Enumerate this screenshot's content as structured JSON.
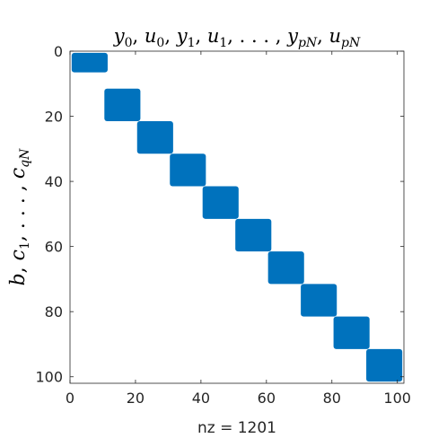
{
  "chart_data": {
    "type": "spy",
    "title": "y_0, u_0, y_1, u_1, ..., y_pN, u_pN",
    "ylabel": "b, c_1, ..., c_qN",
    "xlabel": "nz = 1201",
    "xlim": [
      0,
      102
    ],
    "ylim": [
      102,
      0
    ],
    "xticks": [
      "0",
      "20",
      "40",
      "60",
      "80",
      "100"
    ],
    "yticks": [
      "0",
      "20",
      "40",
      "60",
      "80",
      "100"
    ],
    "xtick_values": [
      0,
      20,
      40,
      60,
      80,
      100
    ],
    "ytick_values": [
      0,
      20,
      40,
      60,
      80,
      100
    ],
    "marker_color": "#0072BD",
    "blocks": [
      {
        "row_start": 1,
        "row_end": 6,
        "col_start": 1,
        "col_end": 11
      },
      {
        "row_start": 12,
        "row_end": 21,
        "col_start": 11,
        "col_end": 21
      },
      {
        "row_start": 22,
        "row_end": 31,
        "col_start": 21,
        "col_end": 31
      },
      {
        "row_start": 32,
        "row_end": 41,
        "col_start": 31,
        "col_end": 41
      },
      {
        "row_start": 42,
        "row_end": 51,
        "col_start": 41,
        "col_end": 51
      },
      {
        "row_start": 52,
        "row_end": 61,
        "col_start": 51,
        "col_end": 61
      },
      {
        "row_start": 62,
        "row_end": 71,
        "col_start": 61,
        "col_end": 71
      },
      {
        "row_start": 72,
        "row_end": 81,
        "col_start": 71,
        "col_end": 81
      },
      {
        "row_start": 82,
        "row_end": 91,
        "col_start": 81,
        "col_end": 91
      },
      {
        "row_start": 92,
        "row_end": 101,
        "col_start": 91,
        "col_end": 101
      }
    ]
  }
}
